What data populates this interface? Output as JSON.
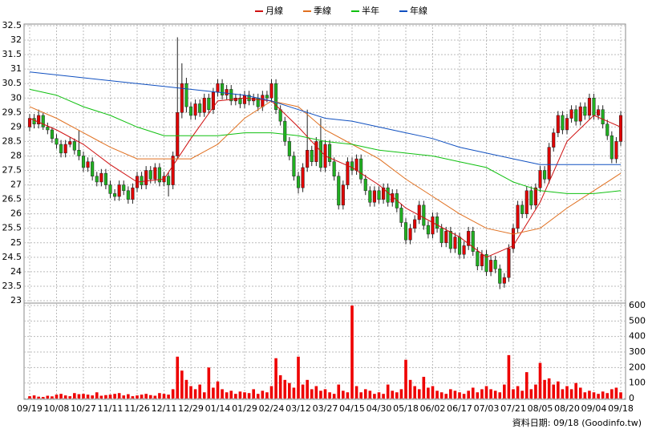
{
  "chart_data": {
    "type": "candlestick",
    "footer": "資料日期: 09/18 (Goodinfo.tw)",
    "categories": [
      "09/19",
      null,
      null,
      null,
      null,
      null,
      "10/08",
      null,
      null,
      null,
      null,
      null,
      "10/27",
      null,
      null,
      null,
      null,
      null,
      "11/11",
      null,
      null,
      null,
      null,
      null,
      "11/26",
      null,
      null,
      null,
      null,
      null,
      "12/11",
      null,
      null,
      null,
      null,
      null,
      "12/29",
      null,
      null,
      null,
      null,
      null,
      "01/14",
      null,
      null,
      null,
      null,
      null,
      "01/29",
      null,
      null,
      null,
      null,
      null,
      "02/24",
      null,
      null,
      null,
      null,
      null,
      "03/12",
      null,
      null,
      null,
      null,
      null,
      "03/27",
      null,
      null,
      null,
      null,
      null,
      "04/15",
      null,
      null,
      null,
      null,
      null,
      "04/30",
      null,
      null,
      null,
      null,
      null,
      "05/18",
      null,
      null,
      null,
      null,
      null,
      "06/02",
      null,
      null,
      null,
      null,
      null,
      "06/17",
      null,
      null,
      null,
      null,
      null,
      "07/03",
      null,
      null,
      null,
      null,
      null,
      "07/21",
      null,
      null,
      null,
      null,
      null,
      "08/05",
      null,
      null,
      null,
      null,
      null,
      "08/20",
      null,
      null,
      null,
      null,
      null,
      "09/04",
      null,
      null,
      null,
      null,
      null,
      "09/18"
    ],
    "open": [
      29.0,
      29.3,
      29.1,
      29.4,
      29.0,
      28.9,
      28.6,
      28.4,
      28.1,
      28.4,
      28.5,
      28.2,
      28.0,
      27.6,
      27.8,
      27.3,
      27.1,
      27.4,
      27.0,
      26.7,
      26.6,
      27.0,
      26.8,
      26.5,
      26.9,
      27.3,
      27.0,
      27.5,
      27.2,
      27.6,
      27.1,
      27.3,
      27.0,
      28.0,
      29.5,
      30.5,
      29.7,
      29.4,
      29.8,
      29.5,
      30.0,
      29.6,
      30.2,
      30.5,
      30.1,
      30.3,
      29.9,
      30.0,
      29.8,
      30.1,
      29.9,
      30.0,
      29.7,
      30.1,
      30.0,
      30.5,
      29.6,
      29.2,
      28.5,
      28.0,
      27.3,
      26.9,
      27.6,
      28.2,
      27.8,
      28.5,
      27.6,
      28.4,
      27.8,
      27.3,
      26.3,
      27.0,
      27.8,
      27.5,
      27.9,
      27.2,
      26.8,
      26.4,
      26.8,
      26.5,
      26.9,
      26.4,
      26.7,
      26.2,
      25.7,
      25.1,
      25.5,
      25.8,
      26.3,
      25.6,
      25.3,
      25.9,
      25.5,
      25.0,
      25.4,
      24.8,
      25.2,
      24.6,
      24.9,
      25.4,
      24.7,
      24.2,
      24.6,
      24.0,
      24.4,
      24.1,
      23.6,
      23.8,
      24.8,
      25.5,
      26.3,
      26.0,
      26.8,
      26.3,
      26.9,
      27.5,
      27.2,
      28.3,
      28.8,
      29.4,
      28.9,
      29.3,
      29.6,
      29.2,
      29.7,
      29.4,
      30.0,
      29.4,
      29.6,
      29.1,
      28.7,
      27.9,
      28.5
    ],
    "high": [
      29.45,
      29.45,
      29.6,
      29.5,
      29.15,
      29.0,
      28.75,
      28.55,
      28.55,
      28.65,
      28.6,
      28.9,
      28.15,
      27.95,
      27.95,
      27.45,
      27.55,
      27.55,
      27.15,
      26.85,
      27.15,
      27.15,
      26.95,
      27.05,
      27.45,
      27.45,
      27.65,
      27.65,
      27.75,
      27.75,
      27.45,
      27.45,
      28.15,
      32.1,
      31.2,
      30.7,
      29.85,
      29.95,
      29.95,
      30.15,
      30.15,
      30.35,
      30.65,
      30.65,
      30.45,
      30.45,
      30.15,
      30.15,
      30.25,
      30.25,
      30.15,
      30.15,
      30.25,
      30.25,
      30.65,
      30.65,
      29.75,
      29.35,
      28.65,
      28.15,
      27.45,
      27.75,
      29.6,
      28.35,
      28.65,
      29.3,
      28.55,
      28.55,
      27.95,
      27.45,
      27.15,
      27.95,
      27.95,
      28.05,
      28.05,
      27.35,
      26.95,
      26.95,
      26.95,
      27.05,
      27.05,
      26.85,
      26.85,
      26.35,
      25.85,
      25.65,
      25.95,
      26.45,
      26.45,
      25.75,
      26.05,
      26.05,
      25.65,
      25.55,
      25.55,
      25.35,
      25.35,
      25.05,
      25.55,
      25.55,
      24.85,
      24.75,
      24.75,
      24.55,
      24.55,
      24.25,
      23.95,
      24.95,
      25.65,
      26.45,
      26.45,
      26.95,
      26.95,
      27.05,
      27.65,
      27.65,
      28.45,
      28.95,
      29.55,
      29.55,
      29.45,
      29.75,
      29.75,
      29.85,
      29.85,
      30.15,
      30.15,
      29.75,
      29.75,
      29.25,
      28.85,
      28.65,
      29.55
    ],
    "low": [
      28.85,
      28.95,
      28.95,
      28.9,
      28.75,
      28.45,
      28.25,
      27.95,
      27.95,
      28.3,
      28.05,
      27.85,
      27.45,
      27.45,
      27.15,
      26.95,
      26.95,
      26.85,
      26.55,
      26.45,
      26.45,
      26.65,
      26.35,
      26.35,
      26.75,
      26.85,
      26.85,
      27.05,
      27.05,
      26.95,
      26.95,
      26.6,
      26.85,
      27.9,
      29.3,
      29.5,
      29.25,
      29.25,
      29.35,
      29.35,
      29.45,
      29.45,
      30.05,
      29.95,
      29.95,
      29.75,
      29.75,
      29.65,
      29.65,
      29.75,
      29.75,
      29.55,
      29.55,
      29.85,
      29.85,
      29.45,
      29.05,
      28.35,
      27.85,
      27.15,
      26.7,
      26.75,
      27.45,
      27.65,
      27.65,
      27.45,
      27.45,
      27.65,
      27.15,
      26.15,
      26.15,
      26.85,
      27.35,
      27.35,
      27.05,
      26.65,
      26.25,
      26.25,
      26.35,
      26.35,
      26.25,
      26.25,
      26.05,
      25.55,
      24.95,
      24.95,
      25.35,
      25.65,
      25.45,
      25.15,
      25.15,
      25.35,
      24.85,
      24.85,
      24.65,
      24.65,
      24.45,
      24.45,
      24.75,
      24.55,
      24.05,
      24.05,
      23.85,
      23.85,
      23.95,
      23.4,
      23.45,
      23.65,
      24.65,
      25.35,
      25.85,
      25.85,
      26.15,
      26.15,
      26.75,
      27.05,
      27.05,
      28.15,
      28.65,
      28.75,
      28.75,
      29.15,
      29.05,
      29.05,
      29.25,
      29.25,
      29.25,
      29.25,
      28.95,
      28.55,
      27.75,
      27.75,
      28.35
    ],
    "close": [
      29.3,
      29.1,
      29.4,
      29.0,
      28.9,
      28.6,
      28.4,
      28.1,
      28.4,
      28.5,
      28.2,
      28.0,
      27.6,
      27.8,
      27.3,
      27.1,
      27.4,
      27.0,
      26.7,
      26.6,
      27.0,
      26.8,
      26.5,
      26.9,
      27.3,
      27.0,
      27.5,
      27.2,
      27.6,
      27.1,
      27.3,
      27.0,
      28.0,
      29.5,
      30.5,
      29.7,
      29.4,
      29.8,
      29.5,
      30.0,
      29.6,
      30.2,
      30.5,
      30.1,
      30.3,
      29.9,
      30.0,
      29.8,
      30.1,
      29.9,
      30.0,
      29.7,
      30.1,
      30.0,
      30.5,
      29.6,
      29.2,
      28.5,
      28.0,
      27.3,
      26.9,
      27.6,
      28.2,
      27.8,
      28.5,
      27.6,
      28.4,
      27.8,
      27.3,
      26.3,
      27.0,
      27.8,
      27.5,
      27.9,
      27.2,
      26.8,
      26.4,
      26.8,
      26.5,
      26.9,
      26.4,
      26.7,
      26.2,
      25.7,
      25.1,
      25.5,
      25.8,
      26.3,
      25.6,
      25.3,
      25.9,
      25.5,
      25.0,
      25.4,
      24.8,
      25.2,
      24.6,
      24.9,
      25.4,
      24.7,
      24.2,
      24.6,
      24.0,
      24.4,
      24.1,
      23.6,
      23.8,
      24.8,
      25.5,
      26.3,
      26.0,
      26.8,
      26.3,
      26.9,
      27.5,
      27.2,
      28.3,
      28.8,
      29.4,
      28.9,
      29.3,
      29.6,
      29.2,
      29.7,
      29.4,
      30.0,
      29.4,
      29.6,
      29.1,
      28.7,
      27.9,
      28.5,
      29.4
    ],
    "up_color": "#e00000",
    "down_color": "#20b020",
    "volume": {
      "color": "#ee0000",
      "values": [
        15,
        20,
        12,
        10,
        18,
        14,
        25,
        30,
        20,
        15,
        35,
        28,
        30,
        25,
        20,
        40,
        18,
        22,
        25,
        30,
        35,
        20,
        28,
        15,
        20,
        25,
        30,
        22,
        18,
        35,
        30,
        25,
        60,
        270,
        180,
        120,
        80,
        60,
        90,
        40,
        200,
        70,
        110,
        60,
        40,
        50,
        30,
        45,
        40,
        35,
        60,
        30,
        50,
        40,
        80,
        260,
        150,
        120,
        100,
        70,
        270,
        90,
        120,
        60,
        80,
        50,
        60,
        40,
        30,
        90,
        50,
        40,
        600,
        80,
        40,
        60,
        50,
        30,
        40,
        30,
        90,
        50,
        40,
        60,
        250,
        120,
        80,
        60,
        140,
        70,
        80,
        50,
        40,
        30,
        60,
        50,
        40,
        30,
        50,
        70,
        40,
        60,
        80,
        60,
        50,
        40,
        90,
        280,
        60,
        80,
        50,
        170,
        60,
        90,
        230,
        120,
        130,
        90,
        110,
        60,
        80,
        60,
        100,
        70,
        40,
        50,
        40,
        30,
        45,
        35,
        60,
        70,
        40
      ],
      "ylim": [
        0,
        600
      ],
      "yticks": [
        0,
        100,
        200,
        300,
        400,
        500,
        600
      ]
    },
    "ylim": [
      23,
      32.5
    ],
    "yticks": [
      23,
      23.5,
      24,
      24.5,
      25,
      25.5,
      26,
      26.5,
      27,
      27.5,
      28,
      28.5,
      29,
      29.5,
      30,
      30.5,
      31,
      31.5,
      32,
      32.5
    ],
    "grid": true,
    "series": [
      {
        "name": "月線",
        "color": "#d01010",
        "x": [
          "09/19",
          "10/08",
          "10/27",
          "11/11",
          "11/26",
          "12/11",
          "12/29",
          "01/14",
          "01/29",
          "02/24",
          "03/12",
          "03/27",
          "04/15",
          "04/30",
          "05/18",
          "06/02",
          "06/17",
          "07/03",
          "07/21",
          "08/05",
          "08/20",
          "09/04",
          "09/18"
        ],
        "values": [
          29.3,
          28.9,
          28.4,
          27.7,
          27.1,
          27.2,
          28.6,
          29.9,
          30.0,
          29.9,
          29.0,
          28.0,
          27.6,
          27.0,
          26.2,
          25.7,
          25.2,
          24.5,
          24.9,
          26.4,
          28.5,
          29.4,
          29.0
        ]
      },
      {
        "name": "季線",
        "color": "#e07020",
        "x": [
          "09/19",
          "10/08",
          "10/27",
          "11/11",
          "11/26",
          "12/11",
          "12/29",
          "01/14",
          "01/29",
          "02/24",
          "03/12",
          "03/27",
          "04/15",
          "04/30",
          "05/18",
          "06/02",
          "06/17",
          "07/03",
          "07/21",
          "08/05",
          "08/20",
          "09/04",
          "09/18"
        ],
        "values": [
          29.7,
          29.3,
          28.8,
          28.3,
          27.9,
          27.9,
          27.9,
          28.4,
          29.3,
          29.9,
          29.7,
          28.9,
          28.4,
          27.9,
          27.2,
          26.6,
          26.0,
          25.5,
          25.3,
          25.5,
          26.2,
          26.8,
          27.4
        ]
      },
      {
        "name": "半年",
        "color": "#10c010",
        "x": [
          "09/19",
          "10/08",
          "10/27",
          "11/11",
          "11/26",
          "12/11",
          "12/29",
          "01/14",
          "01/29",
          "02/24",
          "03/12",
          "03/27",
          "04/15",
          "04/30",
          "05/18",
          "06/02",
          "06/17",
          "07/03",
          "07/21",
          "08/05",
          "08/20",
          "09/04",
          "09/18"
        ],
        "values": [
          30.3,
          30.1,
          29.7,
          29.4,
          29.0,
          28.7,
          28.7,
          28.7,
          28.8,
          28.8,
          28.7,
          28.5,
          28.4,
          28.2,
          28.1,
          28.0,
          27.8,
          27.6,
          27.1,
          26.8,
          26.7,
          26.7,
          26.8
        ]
      },
      {
        "name": "年線",
        "color": "#1050c0",
        "x": [
          "09/19",
          "10/08",
          "10/27",
          "11/11",
          "11/26",
          "12/11",
          "12/29",
          "01/14",
          "01/29",
          "02/24",
          "03/12",
          "03/27",
          "04/15",
          "04/30",
          "05/18",
          "06/02",
          "06/17",
          "07/03",
          "07/21",
          "08/05",
          "08/20",
          "09/04",
          "09/18"
        ],
        "values": [
          30.9,
          30.8,
          30.7,
          30.6,
          30.5,
          30.4,
          30.3,
          30.2,
          30.1,
          29.9,
          29.6,
          29.3,
          29.2,
          29.0,
          28.8,
          28.6,
          28.3,
          28.1,
          27.9,
          27.7,
          27.7,
          27.7,
          27.7
        ]
      }
    ]
  }
}
